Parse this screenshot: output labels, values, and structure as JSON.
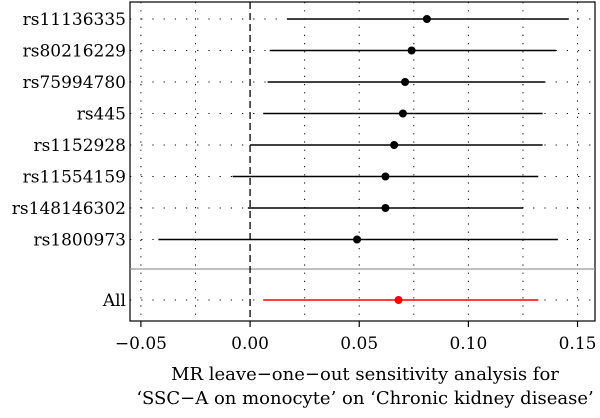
{
  "chart_data": {
    "type": "forest",
    "title": "",
    "xlabel_lines": [
      "MR leave−one−out sensitivity analysis for",
      "‘SSC−A on monocyte’ on ‘Chronic kidney disease’"
    ],
    "xlim": [
      -0.055,
      0.158
    ],
    "xticks": [
      -0.05,
      0.0,
      0.05,
      0.1,
      0.15
    ],
    "xtick_labels": [
      "−0.05",
      "0.00",
      "0.05",
      "0.10",
      "0.15"
    ],
    "reference_line_x": 0,
    "grid": true,
    "snps": [
      {
        "label": "rs11136335",
        "estimate": 0.081,
        "lower": 0.017,
        "upper": 0.146
      },
      {
        "label": "rs80216229",
        "estimate": 0.074,
        "lower": 0.009,
        "upper": 0.14
      },
      {
        "label": "rs75994780",
        "estimate": 0.071,
        "lower": 0.008,
        "upper": 0.135
      },
      {
        "label": "rs445",
        "estimate": 0.07,
        "lower": 0.006,
        "upper": 0.134
      },
      {
        "label": "rs1152928",
        "estimate": 0.066,
        "lower": 0.0,
        "upper": 0.134
      },
      {
        "label": "rs11554159",
        "estimate": 0.062,
        "lower": -0.008,
        "upper": 0.132
      },
      {
        "label": "rs148146302",
        "estimate": 0.062,
        "lower": -0.001,
        "upper": 0.125
      },
      {
        "label": "rs1800973",
        "estimate": 0.049,
        "lower": -0.042,
        "upper": 0.141
      }
    ],
    "overall": {
      "label": "All",
      "estimate": 0.068,
      "lower": 0.006,
      "upper": 0.132
    },
    "colors": {
      "snp": "#000000",
      "overall": "#ff0000",
      "separator": "#999999"
    }
  }
}
